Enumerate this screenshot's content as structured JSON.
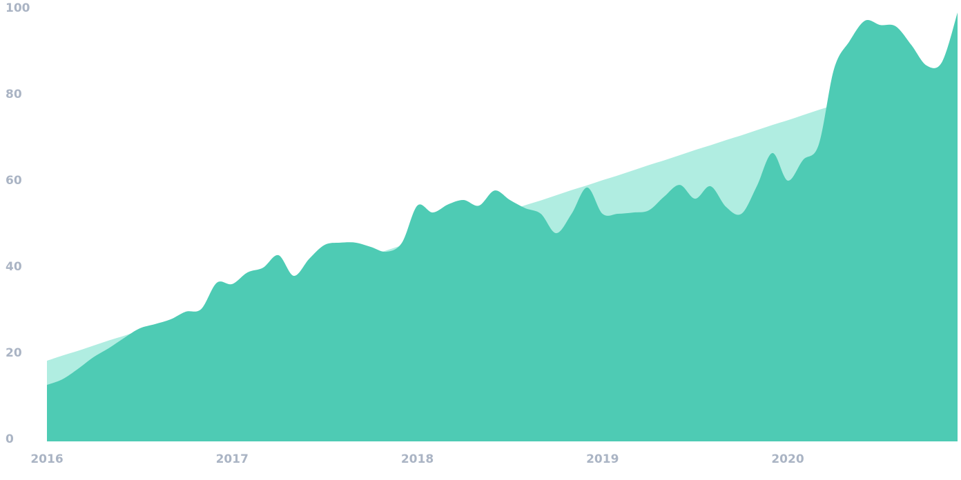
{
  "chart_data": {
    "type": "area",
    "x": [
      2016,
      2016.083,
      2016.167,
      2016.25,
      2016.333,
      2016.417,
      2016.5,
      2016.583,
      2016.667,
      2016.75,
      2016.833,
      2016.917,
      2017,
      2017.083,
      2017.167,
      2017.25,
      2017.333,
      2017.417,
      2017.5,
      2017.583,
      2017.667,
      2017.75,
      2017.833,
      2017.917,
      2018,
      2018.083,
      2018.167,
      2018.25,
      2018.333,
      2018.417,
      2018.5,
      2018.583,
      2018.667,
      2018.75,
      2018.833,
      2018.917,
      2019,
      2019.083,
      2019.167,
      2019.25,
      2019.333,
      2019.417,
      2019.5,
      2019.583,
      2019.667,
      2019.75,
      2019.833,
      2019.917,
      2020,
      2020.083,
      2020.167,
      2020.25,
      2020.333,
      2020.417,
      2020.5,
      2020.583,
      2020.667,
      2020.75,
      2020.833,
      2020.917
    ],
    "series": [
      {
        "color": "#b0ede1",
        "values": [
          18.7,
          19.9,
          21.0,
          22.2,
          23.4,
          24.5,
          25.7,
          26.8,
          28.0,
          29.2,
          30.3,
          31.5,
          32.7,
          33.8,
          35.0,
          36.2,
          37.3,
          38.5,
          39.6,
          40.8,
          42.0,
          43.1,
          44.3,
          45.5,
          46.6,
          47.8,
          48.9,
          50.1,
          51.3,
          52.4,
          53.6,
          54.8,
          55.9,
          57.1,
          58.3,
          59.4,
          60.6,
          61.7,
          62.9,
          64.1,
          65.2,
          66.4,
          67.6,
          68.7,
          69.9,
          71.0,
          72.2,
          73.4,
          74.5,
          75.7,
          76.9,
          78.0,
          79.2,
          80.3,
          81.5,
          82.7,
          83.8,
          85.0,
          86.2,
          87.3
        ]
      },
      {
        "color": "#4ecbb4",
        "values": [
          13.1,
          14.4,
          16.8,
          19.5,
          21.6,
          24,
          26.2,
          27.2,
          28.3,
          30.1,
          30.7,
          36.8,
          36.5,
          39.2,
          40.3,
          43.2,
          38.4,
          42.4,
          45.6,
          46.1,
          46.1,
          45.1,
          44,
          46.1,
          54.7,
          53.1,
          55,
          56,
          54.7,
          58.2,
          56,
          54.1,
          52.8,
          48.3,
          52.8,
          58.9,
          52.8,
          52.8,
          53.1,
          53.6,
          56.8,
          59.5,
          56.3,
          59.2,
          54.4,
          52.8,
          59.2,
          66.9,
          60.5,
          65.3,
          68.8,
          86.4,
          92.8,
          97.6,
          96.6,
          96.3,
          92,
          87.2,
          88,
          99.5
        ]
      }
    ],
    "xlim": [
      2016,
      2020.917
    ],
    "xticks": [
      2016,
      2017,
      2018,
      2019,
      2020
    ],
    "ylim": [
      0,
      100
    ],
    "yticks": [
      0,
      20,
      40,
      60,
      80,
      100
    ]
  }
}
